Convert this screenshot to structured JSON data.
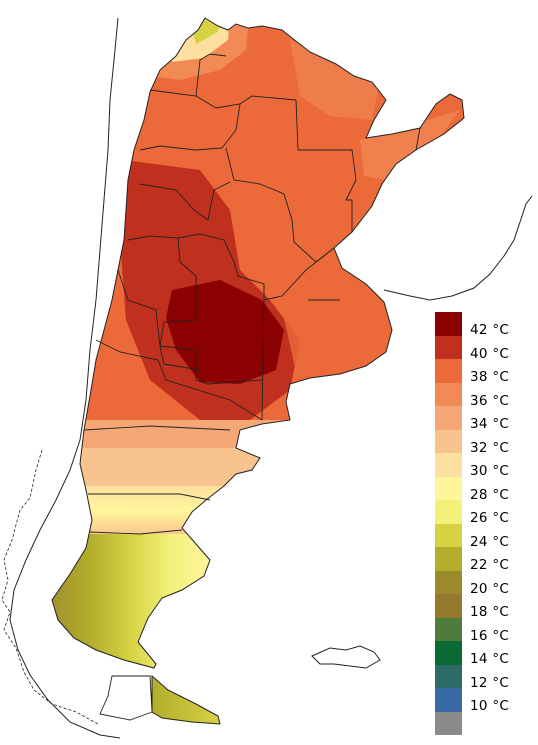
{
  "legend": {
    "unit": "°C",
    "items": [
      {
        "label": "42 °C",
        "color": "#8b0000"
      },
      {
        "label": "40 °C",
        "color": "#c0301e"
      },
      {
        "label": "38 °C",
        "color": "#ec6a3a"
      },
      {
        "label": "36 °C",
        "color": "#f28a56"
      },
      {
        "label": "34 °C",
        "color": "#f6a776"
      },
      {
        "label": "32 °C",
        "color": "#f9c38f"
      },
      {
        "label": "30 °C",
        "color": "#fde0a0"
      },
      {
        "label": "28 °C",
        "color": "#fff69a"
      },
      {
        "label": "26 °C",
        "color": "#f2f27a"
      },
      {
        "label": "24 °C",
        "color": "#d6d244"
      },
      {
        "label": "22 °C",
        "color": "#b3ad2c"
      },
      {
        "label": "20 °C",
        "color": "#9b8a2c"
      },
      {
        "label": "18 °C",
        "color": "#93782e"
      },
      {
        "label": "16 °C",
        "color": "#4e7c3c"
      },
      {
        "label": "14 °C",
        "color": "#0a6a36"
      },
      {
        "label": "12 °C",
        "color": "#2e6a66"
      },
      {
        "label": "10 °C",
        "color": "#3a6aa6"
      },
      {
        "label": "",
        "color": "#8a8a8a"
      }
    ]
  },
  "colors": {
    "hot_core": "#8b0000",
    "very_hot": "#c0301e",
    "hot": "#ec6a3a",
    "warm": "#f28a56",
    "cool_north": "#d6d244",
    "patagonia_south": "#b3ad2c",
    "border": "#222222"
  }
}
